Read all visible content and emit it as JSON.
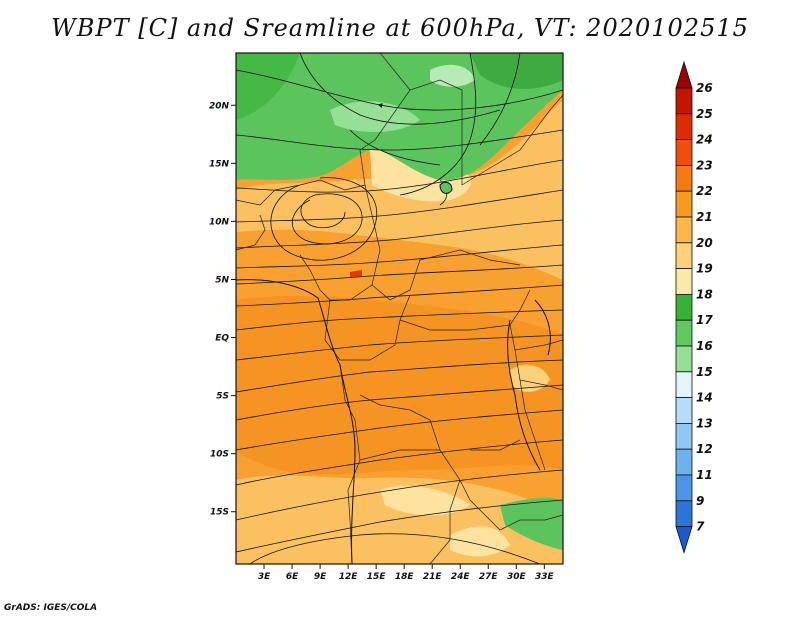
{
  "title": "WBPT [C] and Sreamline at 600hPa, VT: 2020102515",
  "credit": "GrADS: IGES/COLA",
  "map": {
    "lat_range": [
      -19.5,
      24.5
    ],
    "lon_range": [
      0,
      35
    ],
    "lat_ticks": [
      "20N",
      "15N",
      "10N",
      "5N",
      "EQ",
      "5S",
      "10S",
      "15S"
    ],
    "lat_tick_values": [
      20,
      15,
      10,
      5,
      0,
      -5,
      -10,
      -15
    ],
    "lon_ticks": [
      "3E",
      "6E",
      "9E",
      "12E",
      "15E",
      "18E",
      "21E",
      "24E",
      "27E",
      "30E",
      "33E"
    ],
    "lon_tick_values": [
      3,
      6,
      9,
      12,
      15,
      18,
      21,
      24,
      27,
      30,
      33
    ]
  },
  "colorbar": {
    "labels": [
      "26",
      "25",
      "24",
      "23",
      "22",
      "21",
      "20",
      "19",
      "18",
      "17",
      "16",
      "15",
      "14",
      "13",
      "12",
      "11",
      "9",
      "7"
    ],
    "colors": [
      "#a00000",
      "#c41400",
      "#e02a00",
      "#f04e0a",
      "#f57a14",
      "#f99a20",
      "#fbb848",
      "#fcd17a",
      "#fbeaa6",
      "#36b236",
      "#5fca5f",
      "#96e096",
      "#e3f5fa",
      "#b6dcf8",
      "#90c8f4",
      "#6cb2ef",
      "#4b96ea",
      "#2d74d8",
      "#1a5acc"
    ]
  }
}
